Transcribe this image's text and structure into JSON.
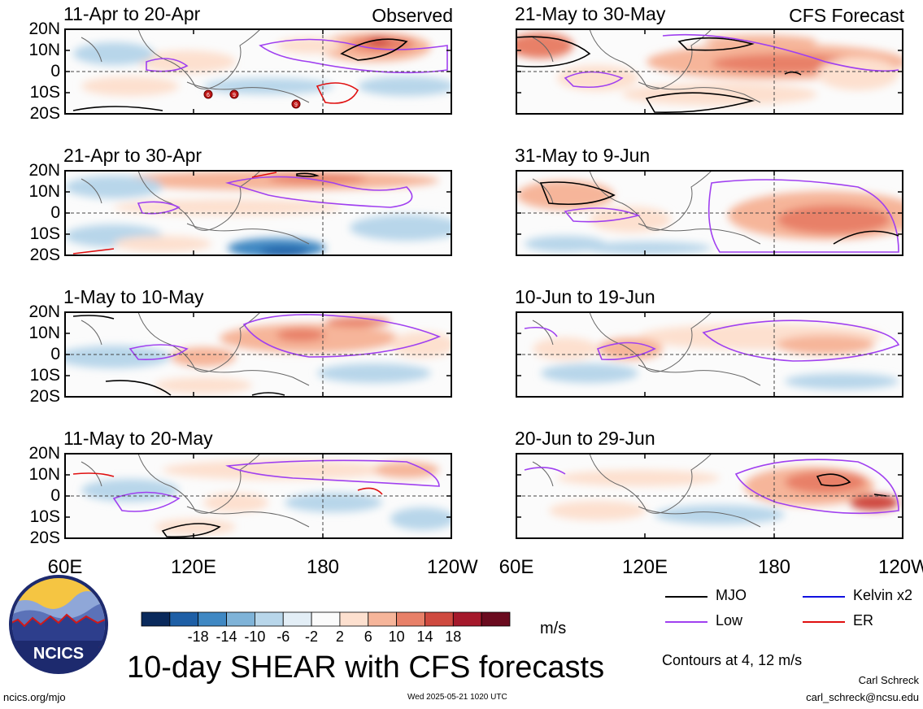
{
  "panels": [
    {
      "id": "p1",
      "title": "11-Apr to 20-Apr",
      "tag": "Observed"
    },
    {
      "id": "p2",
      "title": "21-Apr to 30-Apr",
      "tag": ""
    },
    {
      "id": "p3",
      "title": "1-May to 10-May",
      "tag": ""
    },
    {
      "id": "p4",
      "title": "11-May to 20-May",
      "tag": ""
    },
    {
      "id": "p5",
      "title": "21-May to 30-May",
      "tag": "CFS Forecast"
    },
    {
      "id": "p6",
      "title": "31-May to 9-Jun",
      "tag": ""
    },
    {
      "id": "p7",
      "title": "10-Jun to 19-Jun",
      "tag": ""
    },
    {
      "id": "p8",
      "title": "20-Jun to 29-Jun",
      "tag": ""
    }
  ],
  "lat_labels": [
    "20N",
    "10N",
    "0",
    "10S",
    "20S"
  ],
  "lon_labels": [
    "60E",
    "120E",
    "180",
    "120W"
  ],
  "lon_labels_right": [
    "60E",
    "120E",
    "180",
    "120W"
  ],
  "colorbar": {
    "ticks": [
      "-18",
      "-14",
      "-10",
      "-6",
      "-2",
      "2",
      "6",
      "10",
      "14",
      "18"
    ],
    "colors": [
      "#0a2a5c",
      "#1e5fa6",
      "#3f88c3",
      "#7fb3d8",
      "#b8d6ea",
      "#e3eef6",
      "#fbfbfb",
      "#fde0cf",
      "#f6b59a",
      "#e88068",
      "#cf4a3f",
      "#a5192b",
      "#6b0b1f"
    ],
    "units": "m/s"
  },
  "legend": {
    "items": [
      {
        "label": "MJO",
        "color": "#000000"
      },
      {
        "label": "Kelvin x2",
        "color": "#1010e0"
      },
      {
        "label": "Low",
        "color": "#a040f0"
      },
      {
        "label": "ER",
        "color": "#e01010"
      }
    ],
    "contours_note": "Contours at 4, 12 m/s"
  },
  "main_title": "10-day SHEAR with CFS forecasts",
  "logo_text": "NCICS",
  "footer": {
    "url": "ncics.org/mjo",
    "timestamp": "Wed 2025-05-21 1020 UTC",
    "author": "Carl Schreck",
    "email": "carl_schreck@ncsu.edu"
  },
  "storm_markers": [
    "6",
    "9",
    "9"
  ]
}
